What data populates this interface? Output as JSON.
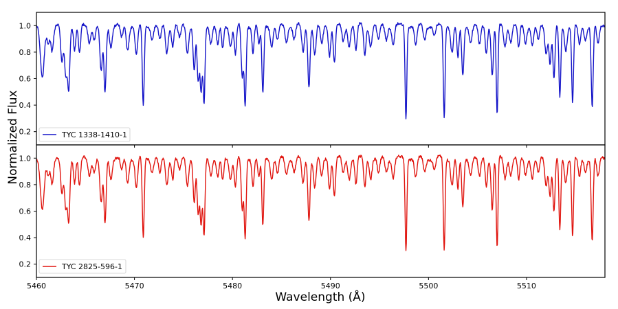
{
  "chart_data": {
    "type": "line",
    "xlabel": "Wavelength (Å)",
    "ylabel": "Normalized Flux",
    "xlim": [
      5460,
      5518
    ],
    "xticks": [
      5460,
      5470,
      5480,
      5490,
      5500,
      5510
    ],
    "xtick_labels": [
      "5460",
      "5470",
      "5480",
      "5490",
      "5500",
      "5510"
    ],
    "grid": false,
    "panels": [
      {
        "ylim": [
          0.1,
          1.1
        ],
        "yticks": [
          0.2,
          0.4,
          0.6,
          0.8,
          1.0
        ],
        "ytick_labels": [
          "0.2",
          "0.4",
          "0.6",
          "0.8",
          "1.0"
        ],
        "legend_position": "lower-left",
        "series": [
          {
            "name": "TYC 1338-1410-1",
            "color": "#1414c8"
          }
        ]
      },
      {
        "ylim": [
          0.1,
          1.1
        ],
        "yticks": [
          0.2,
          0.4,
          0.6,
          0.8,
          1.0
        ],
        "ytick_labels": [
          "0.2",
          "0.4",
          "0.6",
          "0.8",
          "1.0"
        ],
        "legend_position": "lower-left",
        "series": [
          {
            "name": "TYC 2825-596-1",
            "color": "#e0140e"
          }
        ]
      }
    ],
    "absorption_lines": [
      [
        5460.6,
        0.4,
        0.45
      ],
      [
        5461.2,
        0.12,
        0.3
      ],
      [
        5461.6,
        0.18,
        0.3
      ],
      [
        5462.6,
        0.28,
        0.3
      ],
      [
        5463.0,
        0.38,
        0.3
      ],
      [
        5463.3,
        0.45,
        0.25
      ],
      [
        5463.9,
        0.18,
        0.25
      ],
      [
        5464.4,
        0.22,
        0.25
      ],
      [
        5465.4,
        0.12,
        0.3
      ],
      [
        5465.9,
        0.1,
        0.3
      ],
      [
        5466.6,
        0.35,
        0.3
      ],
      [
        5467.0,
        0.5,
        0.25
      ],
      [
        5467.6,
        0.15,
        0.3
      ],
      [
        5468.7,
        0.1,
        0.3
      ],
      [
        5469.3,
        0.18,
        0.3
      ],
      [
        5470.2,
        0.22,
        0.3
      ],
      [
        5470.9,
        0.62,
        0.22
      ],
      [
        5471.8,
        0.1,
        0.3
      ],
      [
        5472.6,
        0.12,
        0.3
      ],
      [
        5473.3,
        0.2,
        0.3
      ],
      [
        5473.9,
        0.15,
        0.25
      ],
      [
        5474.6,
        0.1,
        0.3
      ],
      [
        5475.4,
        0.2,
        0.3
      ],
      [
        5476.1,
        0.33,
        0.25
      ],
      [
        5476.5,
        0.42,
        0.25
      ],
      [
        5476.8,
        0.5,
        0.25
      ],
      [
        5477.1,
        0.58,
        0.22
      ],
      [
        5477.8,
        0.12,
        0.3
      ],
      [
        5478.5,
        0.15,
        0.3
      ],
      [
        5479.0,
        0.18,
        0.25
      ],
      [
        5479.8,
        0.15,
        0.3
      ],
      [
        5480.3,
        0.22,
        0.25
      ],
      [
        5481.0,
        0.4,
        0.25
      ],
      [
        5481.3,
        0.6,
        0.22
      ],
      [
        5482.1,
        0.2,
        0.25
      ],
      [
        5482.7,
        0.15,
        0.25
      ],
      [
        5483.1,
        0.52,
        0.22
      ],
      [
        5484.0,
        0.15,
        0.3
      ],
      [
        5484.6,
        0.12,
        0.3
      ],
      [
        5485.5,
        0.12,
        0.3
      ],
      [
        5486.3,
        0.1,
        0.3
      ],
      [
        5487.2,
        0.2,
        0.3
      ],
      [
        5487.8,
        0.45,
        0.25
      ],
      [
        5488.4,
        0.22,
        0.3
      ],
      [
        5489.1,
        0.15,
        0.3
      ],
      [
        5489.9,
        0.22,
        0.25
      ],
      [
        5490.4,
        0.28,
        0.25
      ],
      [
        5491.3,
        0.12,
        0.3
      ],
      [
        5491.9,
        0.15,
        0.3
      ],
      [
        5492.6,
        0.2,
        0.25
      ],
      [
        5493.5,
        0.22,
        0.25
      ],
      [
        5494.1,
        0.15,
        0.3
      ],
      [
        5494.9,
        0.12,
        0.3
      ],
      [
        5495.7,
        0.1,
        0.3
      ],
      [
        5496.4,
        0.15,
        0.3
      ],
      [
        5497.7,
        0.7,
        0.2
      ],
      [
        5498.7,
        0.15,
        0.3
      ],
      [
        5499.6,
        0.1,
        0.3
      ],
      [
        5500.6,
        0.08,
        0.3
      ],
      [
        5501.6,
        0.7,
        0.2
      ],
      [
        5502.4,
        0.2,
        0.3
      ],
      [
        5503.0,
        0.25,
        0.25
      ],
      [
        5503.5,
        0.38,
        0.25
      ],
      [
        5504.3,
        0.12,
        0.3
      ],
      [
        5505.2,
        0.15,
        0.3
      ],
      [
        5505.9,
        0.2,
        0.25
      ],
      [
        5506.5,
        0.38,
        0.25
      ],
      [
        5507.0,
        0.68,
        0.2
      ],
      [
        5507.8,
        0.15,
        0.3
      ],
      [
        5508.4,
        0.12,
        0.3
      ],
      [
        5509.2,
        0.18,
        0.25
      ],
      [
        5509.9,
        0.12,
        0.3
      ],
      [
        5510.6,
        0.15,
        0.3
      ],
      [
        5511.2,
        0.12,
        0.3
      ],
      [
        5512.0,
        0.2,
        0.3
      ],
      [
        5512.4,
        0.28,
        0.25
      ],
      [
        5512.8,
        0.4,
        0.25
      ],
      [
        5513.4,
        0.55,
        0.22
      ],
      [
        5514.0,
        0.18,
        0.3
      ],
      [
        5514.7,
        0.58,
        0.22
      ],
      [
        5515.4,
        0.15,
        0.3
      ],
      [
        5516.0,
        0.1,
        0.3
      ],
      [
        5516.7,
        0.62,
        0.22
      ],
      [
        5517.3,
        0.15,
        0.3
      ]
    ]
  }
}
